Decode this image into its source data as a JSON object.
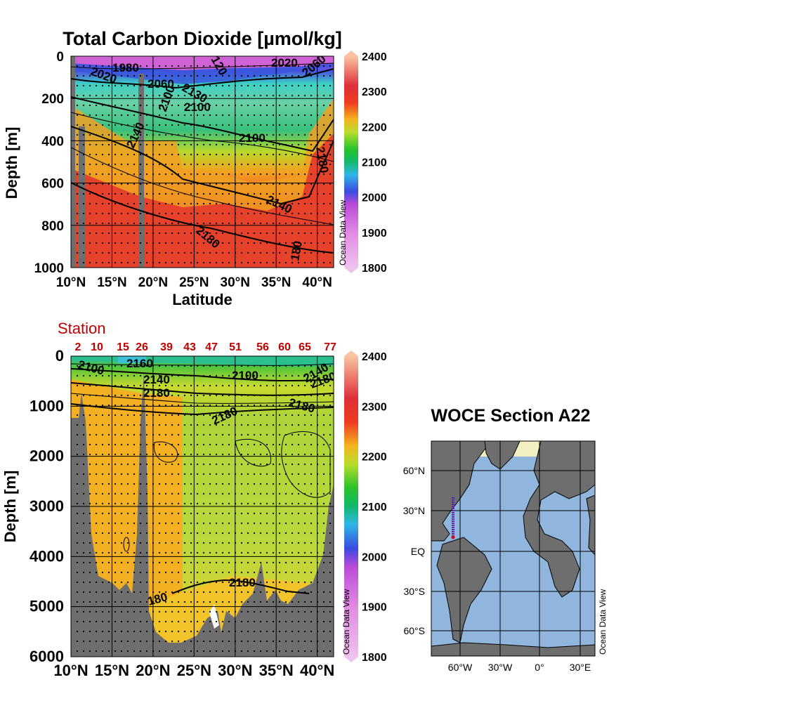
{
  "chart_data": [
    {
      "type": "heatmap",
      "title": "Total Carbon Dioxide [µmol/kg]",
      "xlabel": "Latitude",
      "ylabel": "Depth [m]",
      "xlim": [
        10,
        42
      ],
      "ylim": [
        0,
        1000
      ],
      "x_ticks": [
        "10°N",
        "15°N",
        "20°N",
        "25°N",
        "30°N",
        "35°N",
        "40°N"
      ],
      "y_ticks": [
        "0",
        "200",
        "400",
        "600",
        "800",
        "1000"
      ],
      "colorbar_ticks": [
        "2400",
        "2300",
        "2200",
        "2100",
        "2000",
        "1900",
        "1800"
      ],
      "colorbar_range": [
        1800,
        2400
      ],
      "contour_labels": [
        "2020",
        "1980",
        "2060",
        "2100",
        "2140",
        "2100",
        "2140",
        "2180",
        "2020",
        "2060",
        "2180",
        "180",
        "120",
        "2100",
        "2130"
      ],
      "watermark": "Ocean Data View"
    },
    {
      "type": "heatmap",
      "xlabel": "",
      "ylabel": "Depth [m]",
      "xlim": [
        10,
        42
      ],
      "ylim": [
        0,
        6000
      ],
      "x_ticks": [
        "10°N",
        "15°N",
        "20°N",
        "25°N",
        "30°N",
        "35°N",
        "40°N"
      ],
      "y_ticks": [
        "0",
        "1000",
        "2000",
        "3000",
        "4000",
        "5000",
        "6000"
      ],
      "colorbar_ticks": [
        "2400",
        "2300",
        "2200",
        "2100",
        "2000",
        "1900",
        "1800"
      ],
      "colorbar_range": [
        1800,
        2400
      ],
      "station_label": "Station",
      "stations": [
        "2",
        "10",
        "15",
        "26",
        "39",
        "43",
        "47",
        "51",
        "56",
        "60",
        "65",
        "77"
      ],
      "contour_labels": [
        "2100",
        "2160",
        "2140",
        "2180",
        "2100",
        "2180",
        "2180",
        "2180",
        "180",
        "2140",
        "2180"
      ],
      "watermark": "Ocean Data View"
    }
  ],
  "map": {
    "title": "WOCE Section A22",
    "lat_ticks": [
      "60°N",
      "30°N",
      "EQ",
      "30°S",
      "60°S"
    ],
    "lon_ticks": [
      "60°W",
      "30°W",
      "0°",
      "30°E"
    ],
    "watermark": "Ocean Data View",
    "track_color": "#5a2aa8"
  },
  "colors": {
    "land": "#6e6e6e",
    "station_red": "#c00000"
  }
}
